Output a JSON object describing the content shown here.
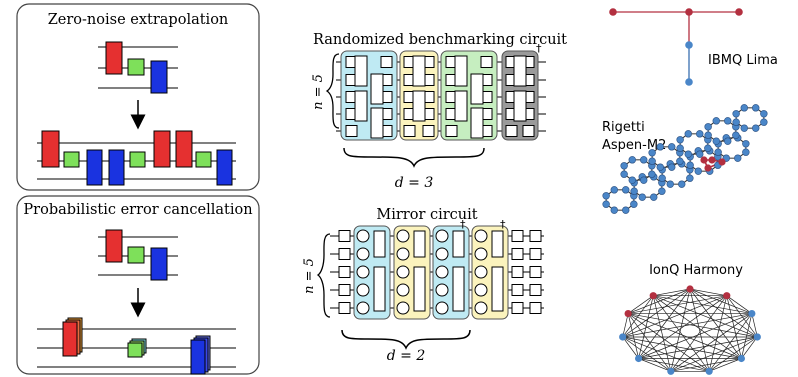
{
  "panels": {
    "zne": {
      "title": "Zero-noise extrapolation"
    },
    "pec": {
      "title": "Probabilistic error cancellation"
    }
  },
  "circuits": {
    "rb": {
      "title": "Randomized benchmarking circuit",
      "n_label": "n = 5",
      "d_label": "d = 3",
      "dagger": "†"
    },
    "mirror": {
      "title": "Mirror circuit",
      "n_label": "n = 5",
      "d_label": "d = 2",
      "dagger": "†"
    }
  },
  "devices": {
    "ibmq": {
      "label": "IBMQ Lima"
    },
    "rigetti": {
      "label_line1": "Rigetti",
      "label_line2": "Aspen-M2"
    },
    "ionq": {
      "label": "IonQ Harmony"
    }
  },
  "colors": {
    "gate_red": "#e53030",
    "gate_green": "#7ee05a",
    "gate_blue": "#1a33e0",
    "layer_cyan": "#bfeaf3",
    "layer_yellow": "#fbf3bd",
    "layer_green": "#c6eec0",
    "layer_gray": "#9a9a9a",
    "node_blue": "#4a86c8",
    "node_red": "#b33040",
    "edge_red": "#b33040",
    "edge_blue": "#3a6fb0"
  }
}
